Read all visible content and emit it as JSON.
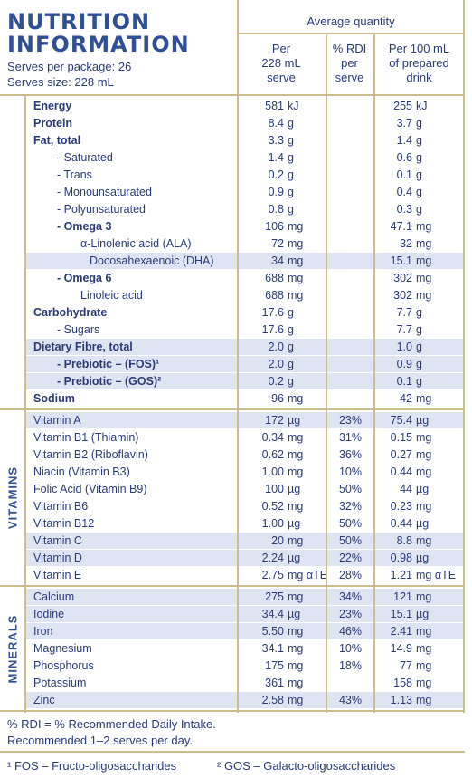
{
  "header": {
    "title": [
      "NUTRITION",
      "INFORMATION"
    ],
    "serves_per_package": "Serves per package: 26",
    "serves_size": "Serves size: 228 mL"
  },
  "columns": {
    "group": "Average quantity",
    "per_serve": [
      "Per",
      "228 mL",
      "serve"
    ],
    "rdi": [
      "% RDI",
      "per",
      "serve"
    ],
    "per_100": [
      "Per 100 mL",
      "of prepared",
      "drink"
    ]
  },
  "nutrients": {
    "rows": [
      [
        "Energy",
        "581",
        "kJ",
        null,
        "255",
        "kJ"
      ],
      [
        "Protein",
        "8.4",
        "g",
        null,
        "3.7",
        "g"
      ],
      [
        "Fat, total",
        "3.3",
        "g",
        null,
        "1.4",
        "g"
      ],
      [
        "- Saturated",
        "1.4",
        "g",
        null,
        "0.6",
        "g"
      ],
      [
        "- Trans",
        "0.2",
        "g",
        null,
        "0.1",
        "g"
      ],
      [
        "- Monounsaturated",
        "0.9",
        "g",
        null,
        "0.4",
        "g"
      ],
      [
        "- Polyunsaturated",
        "0.8",
        "g",
        null,
        "0.3",
        "g"
      ],
      [
        "- Omega 3",
        "106",
        "mg",
        null,
        "47.1",
        "mg"
      ],
      [
        "α-Linolenic acid (ALA)",
        "72",
        "mg",
        null,
        "32",
        "mg"
      ],
      [
        "Docosahexaenoic (DHA)",
        "34",
        "mg",
        null,
        "15.1",
        "mg"
      ],
      [
        "- Omega 6",
        "688",
        "mg",
        null,
        "302",
        "mg"
      ],
      [
        "Linoleic acid",
        "688",
        "mg",
        null,
        "302",
        "mg"
      ],
      [
        "Carbohydrate",
        "17.6",
        "g",
        null,
        "7.7",
        "g"
      ],
      [
        "- Sugars",
        "17.6",
        "g",
        null,
        "7.7",
        "g"
      ],
      [
        "Dietary Fibre, total",
        "2.0",
        "g",
        null,
        "1.0",
        "g"
      ],
      [
        "- Prebiotic – (FOS)¹",
        "2.0",
        "g",
        null,
        "0.9",
        "g"
      ],
      [
        "- Prebiotic – (GOS)²",
        "0.2",
        "g",
        null,
        "0.1",
        "g"
      ],
      [
        "Sodium",
        "96",
        "mg",
        null,
        "42",
        "mg"
      ]
    ]
  },
  "vitamins": {
    "label": "VITAMINS",
    "rows": [
      [
        "Vitamin A",
        "172",
        "µg",
        "23%",
        "75.4",
        "µg"
      ],
      [
        "Vitamin B1 (Thiamin)",
        "0.34",
        "mg",
        "31%",
        "0.15",
        "mg"
      ],
      [
        "Vitamin B2 (Riboflavin)",
        "0.62",
        "mg",
        "36%",
        "0.27",
        "mg"
      ],
      [
        "Niacin (Vitamin B3)",
        "1.00",
        "mg",
        "10%",
        "0.44",
        "mg"
      ],
      [
        "Folic Acid (Vitamin B9)",
        "100",
        "µg",
        "50%",
        "44",
        "µg"
      ],
      [
        "Vitamin B6",
        "0.52",
        "mg",
        "32%",
        "0.23",
        "mg"
      ],
      [
        "Vitamin B12",
        "1.00",
        "µg",
        "50%",
        "0.44",
        "µg"
      ],
      [
        "Vitamin C",
        "20",
        "mg",
        "50%",
        "8.8",
        "mg"
      ],
      [
        "Vitamin D",
        "2.24",
        "µg",
        "22%",
        "0.98",
        "µg"
      ],
      [
        "Vitamin E",
        "2.75",
        "mg αTE",
        "28%",
        "1.21",
        "mg αTE"
      ]
    ]
  },
  "minerals": {
    "label": "MINERALS",
    "rows": [
      [
        "Calcium",
        "275",
        "mg",
        "34%",
        "121",
        "mg"
      ],
      [
        "Iodine",
        "34.4",
        "µg",
        "23%",
        "15.1",
        "µg"
      ],
      [
        "Iron",
        "5.50",
        "mg",
        "46%",
        "2.41",
        "mg"
      ],
      [
        "Magnesium",
        "34.1",
        "mg",
        "10%",
        "14.9",
        "mg"
      ],
      [
        "Phosphorus",
        "175",
        "mg",
        "18%",
        "77",
        "mg"
      ],
      [
        "Potassium",
        "361",
        "mg",
        null,
        "158",
        "mg"
      ],
      [
        "Zinc",
        "2.58",
        "mg",
        "43%",
        "1.13",
        "mg"
      ]
    ]
  },
  "footer": {
    "notes": [
      "% RDI = % Recommended Daily Intake.",
      "Recommended 1–2 serves per day."
    ],
    "footnotes": [
      "¹ FOS – Fructo-oligosaccharides",
      "² GOS – Galacto-oligosaccharides"
    ]
  }
}
